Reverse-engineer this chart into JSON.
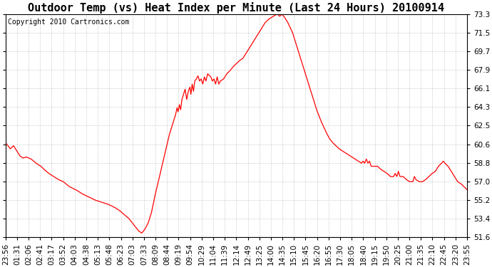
{
  "title": "Outdoor Temp (vs) Heat Index per Minute (Last 24 Hours) 20100914",
  "copyright": "Copyright 2010 Cartronics.com",
  "y_min": 51.6,
  "y_max": 73.3,
  "y_ticks": [
    51.6,
    53.4,
    55.2,
    57.0,
    58.8,
    60.6,
    62.5,
    64.3,
    66.1,
    67.9,
    69.7,
    71.5,
    73.3
  ],
  "line_color": "#ff0000",
  "background_color": "#ffffff",
  "grid_color": "#aaaaaa",
  "title_fontsize": 11,
  "copyright_fontsize": 7,
  "tick_fontsize": 7.5,
  "x_labels": [
    "23:56",
    "01:31",
    "02:06",
    "02:41",
    "03:17",
    "03:52",
    "04:03",
    "04:38",
    "05:13",
    "05:48",
    "06:23",
    "07:03",
    "07:33",
    "08:09",
    "08:44",
    "09:19",
    "09:54",
    "10:29",
    "11:04",
    "11:39",
    "12:14",
    "12:49",
    "13:25",
    "14:00",
    "14:35",
    "15:10",
    "15:45",
    "16:20",
    "16:55",
    "17:30",
    "18:05",
    "18:40",
    "19:15",
    "19:50",
    "20:25",
    "21:00",
    "21:35",
    "22:10",
    "22:45",
    "23:20",
    "23:55"
  ],
  "curve_points": [
    [
      0,
      60.8
    ],
    [
      15,
      60.2
    ],
    [
      25,
      60.5
    ],
    [
      35,
      60.0
    ],
    [
      45,
      59.5
    ],
    [
      55,
      59.3
    ],
    [
      65,
      59.4
    ],
    [
      80,
      59.2
    ],
    [
      95,
      58.8
    ],
    [
      110,
      58.5
    ],
    [
      120,
      58.2
    ],
    [
      135,
      57.8
    ],
    [
      150,
      57.5
    ],
    [
      165,
      57.2
    ],
    [
      180,
      57.0
    ],
    [
      200,
      56.5
    ],
    [
      220,
      56.2
    ],
    [
      240,
      55.8
    ],
    [
      260,
      55.5
    ],
    [
      280,
      55.2
    ],
    [
      300,
      55.0
    ],
    [
      320,
      54.8
    ],
    [
      340,
      54.5
    ],
    [
      355,
      54.2
    ],
    [
      370,
      53.8
    ],
    [
      385,
      53.4
    ],
    [
      400,
      52.8
    ],
    [
      415,
      52.2
    ],
    [
      425,
      52.0
    ],
    [
      435,
      52.4
    ],
    [
      445,
      53.0
    ],
    [
      455,
      54.0
    ],
    [
      465,
      55.5
    ],
    [
      480,
      57.5
    ],
    [
      495,
      59.5
    ],
    [
      510,
      61.5
    ],
    [
      520,
      62.5
    ],
    [
      525,
      63.0
    ],
    [
      530,
      63.5
    ],
    [
      535,
      64.2
    ],
    [
      538,
      63.8
    ],
    [
      542,
      64.5
    ],
    [
      546,
      64.0
    ],
    [
      550,
      65.0
    ],
    [
      555,
      65.5
    ],
    [
      560,
      66.0
    ],
    [
      565,
      65.0
    ],
    [
      570,
      65.8
    ],
    [
      575,
      66.2
    ],
    [
      578,
      65.5
    ],
    [
      582,
      66.5
    ],
    [
      586,
      65.8
    ],
    [
      590,
      66.8
    ],
    [
      595,
      67.0
    ],
    [
      600,
      67.3
    ],
    [
      605,
      66.8
    ],
    [
      610,
      67.0
    ],
    [
      615,
      66.5
    ],
    [
      620,
      67.2
    ],
    [
      625,
      66.8
    ],
    [
      630,
      67.5
    ],
    [
      640,
      67.2
    ],
    [
      645,
      66.8
    ],
    [
      650,
      67.0
    ],
    [
      655,
      66.5
    ],
    [
      660,
      67.2
    ],
    [
      665,
      66.5
    ],
    [
      670,
      66.8
    ],
    [
      680,
      67.0
    ],
    [
      690,
      67.5
    ],
    [
      700,
      67.8
    ],
    [
      710,
      68.2
    ],
    [
      720,
      68.5
    ],
    [
      730,
      68.8
    ],
    [
      740,
      69.0
    ],
    [
      750,
      69.5
    ],
    [
      760,
      70.0
    ],
    [
      770,
      70.5
    ],
    [
      780,
      71.0
    ],
    [
      790,
      71.5
    ],
    [
      800,
      72.0
    ],
    [
      810,
      72.5
    ],
    [
      820,
      72.8
    ],
    [
      830,
      73.0
    ],
    [
      840,
      73.2
    ],
    [
      848,
      73.3
    ],
    [
      855,
      73.1
    ],
    [
      862,
      73.3
    ],
    [
      870,
      73.0
    ],
    [
      880,
      72.5
    ],
    [
      895,
      71.5
    ],
    [
      910,
      70.0
    ],
    [
      925,
      68.5
    ],
    [
      940,
      67.0
    ],
    [
      955,
      65.5
    ],
    [
      970,
      64.0
    ],
    [
      985,
      62.8
    ],
    [
      1000,
      61.8
    ],
    [
      1010,
      61.2
    ],
    [
      1020,
      60.8
    ],
    [
      1030,
      60.5
    ],
    [
      1040,
      60.2
    ],
    [
      1050,
      60.0
    ],
    [
      1060,
      59.8
    ],
    [
      1070,
      59.6
    ],
    [
      1080,
      59.4
    ],
    [
      1090,
      59.2
    ],
    [
      1100,
      59.0
    ],
    [
      1110,
      58.8
    ],
    [
      1115,
      59.0
    ],
    [
      1120,
      58.8
    ],
    [
      1125,
      59.2
    ],
    [
      1130,
      58.8
    ],
    [
      1135,
      59.0
    ],
    [
      1140,
      58.5
    ],
    [
      1150,
      58.5
    ],
    [
      1160,
      58.5
    ],
    [
      1170,
      58.2
    ],
    [
      1180,
      58.0
    ],
    [
      1190,
      57.8
    ],
    [
      1200,
      57.5
    ],
    [
      1210,
      57.5
    ],
    [
      1215,
      57.8
    ],
    [
      1220,
      57.5
    ],
    [
      1225,
      58.0
    ],
    [
      1230,
      57.5
    ],
    [
      1240,
      57.5
    ],
    [
      1250,
      57.2
    ],
    [
      1260,
      57.0
    ],
    [
      1270,
      57.0
    ],
    [
      1275,
      57.5
    ],
    [
      1280,
      57.2
    ],
    [
      1290,
      57.0
    ],
    [
      1300,
      57.0
    ],
    [
      1310,
      57.2
    ],
    [
      1320,
      57.5
    ],
    [
      1330,
      57.8
    ],
    [
      1340,
      58.0
    ],
    [
      1350,
      58.5
    ],
    [
      1360,
      58.8
    ],
    [
      1365,
      59.0
    ],
    [
      1370,
      58.8
    ],
    [
      1380,
      58.5
    ],
    [
      1390,
      58.0
    ],
    [
      1400,
      57.5
    ],
    [
      1410,
      57.0
    ],
    [
      1420,
      56.8
    ],
    [
      1430,
      56.5
    ],
    [
      1440,
      56.2
    ]
  ]
}
